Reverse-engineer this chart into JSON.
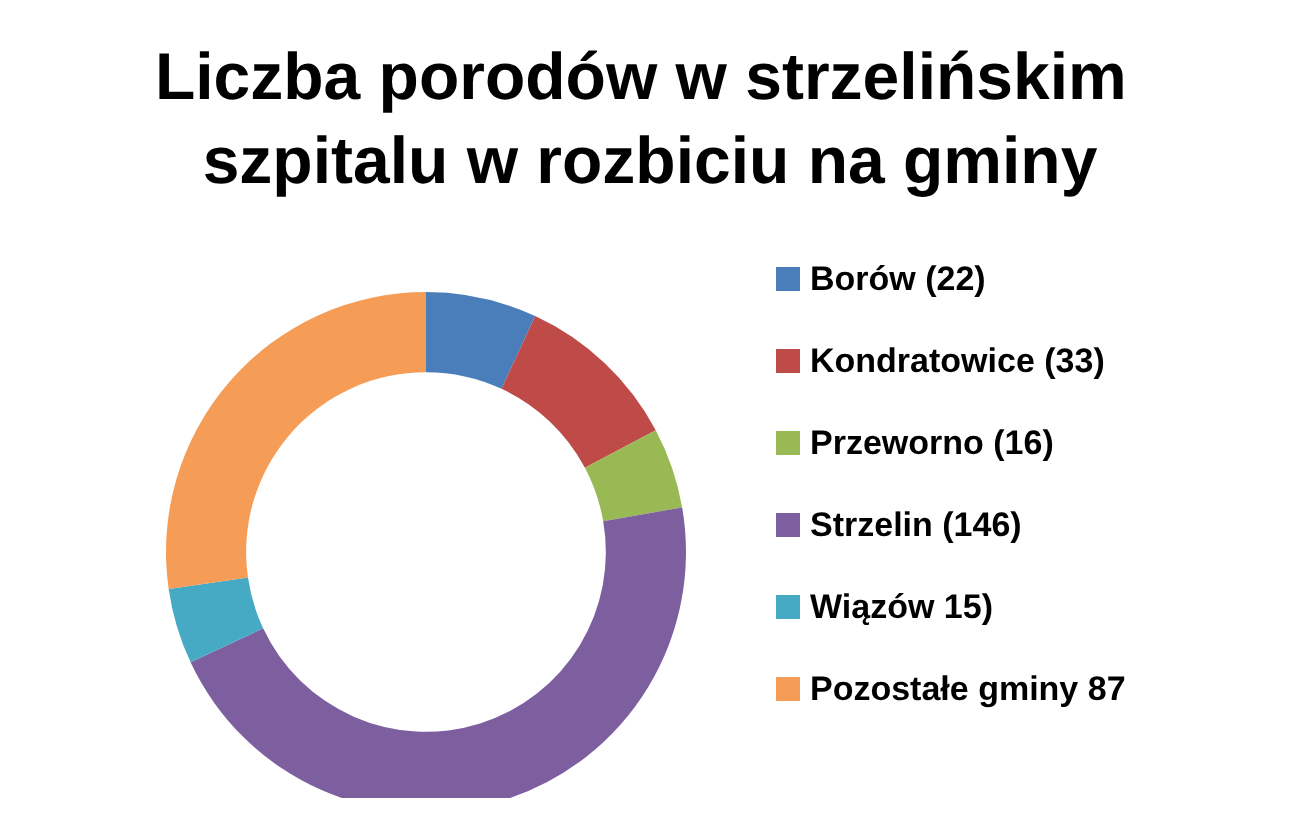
{
  "chart_data": {
    "type": "donut",
    "title": "Liczba porodów w strzelińskim szpitalu w rozbiciu na gminy",
    "categories": [
      "Borów (22)",
      "Kondratowice (33)",
      "Przeworno (16)",
      "Strzelin (146)",
      "Wiązów 15)",
      "Pozostałe gminy 87"
    ],
    "values": [
      22,
      33,
      16,
      146,
      15,
      87
    ],
    "colors": [
      "#4a7ebb",
      "#be4b48",
      "#98b954",
      "#7d5fa0",
      "#46aac5",
      "#f59d56"
    ],
    "legend": "right"
  }
}
